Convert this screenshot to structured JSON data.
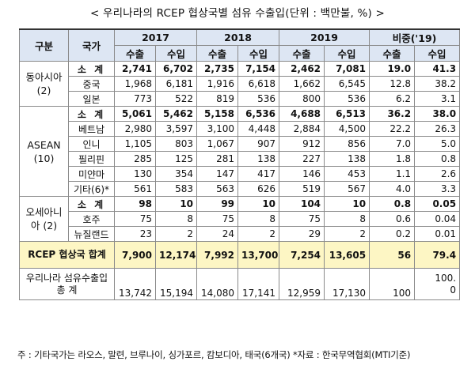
{
  "title": "< 우리나라의 RCEP 협상국별 섬유 수출입(단위 : 백만불, %) >",
  "header": {
    "category": "구분",
    "country": "국가",
    "years": [
      "2017",
      "2018",
      "2019",
      "비중('19)"
    ],
    "export": "수출",
    "import": "수입"
  },
  "groups": {
    "east_asia": {
      "region": "동아시아\n(2)",
      "subtotal": {
        "label": "소 계",
        "values": [
          "2,741",
          "6,702",
          "2,735",
          "7,154",
          "2,462",
          "7,081",
          "19.0",
          "41.3"
        ]
      },
      "rows": [
        {
          "country": "중국",
          "values": [
            "1,968",
            "6,181",
            "1,916",
            "6,618",
            "1,662",
            "6,545",
            "12.8",
            "38.2"
          ]
        },
        {
          "country": "일본",
          "values": [
            "773",
            "522",
            "819",
            "536",
            "800",
            "536",
            "6.2",
            "3.1"
          ]
        }
      ]
    },
    "asean": {
      "region": "ASEAN\n(10)",
      "subtotal": {
        "label": "소 계",
        "values": [
          "5,061",
          "5,462",
          "5,158",
          "6,536",
          "4,688",
          "6,513",
          "36.2",
          "38.0"
        ]
      },
      "rows": [
        {
          "country": "베트남",
          "values": [
            "2,980",
            "3,597",
            "3,100",
            "4,448",
            "2,884",
            "4,500",
            "22.2",
            "26.3"
          ]
        },
        {
          "country": "인니",
          "values": [
            "1,105",
            "803",
            "1,067",
            "907",
            "912",
            "856",
            "7.0",
            "5.0"
          ]
        },
        {
          "country": "필리핀",
          "values": [
            "285",
            "125",
            "281",
            "138",
            "227",
            "138",
            "1.8",
            "0.8"
          ]
        },
        {
          "country": "미얀마",
          "values": [
            "130",
            "354",
            "147",
            "417",
            "146",
            "453",
            "1.1",
            "2.6"
          ]
        },
        {
          "country": "기타(6)*",
          "values": [
            "561",
            "583",
            "563",
            "626",
            "519",
            "567",
            "4.0",
            "3.3"
          ]
        }
      ]
    },
    "oceania": {
      "region": "오세아니\n아\n(2)",
      "subtotal": {
        "label": "소 계",
        "values": [
          "98",
          "10",
          "99",
          "10",
          "104",
          "10",
          "0.8",
          "0.05"
        ]
      },
      "rows": [
        {
          "country": "호주",
          "values": [
            "75",
            "8",
            "75",
            "8",
            "75",
            "8",
            "0.6",
            "0.04"
          ]
        },
        {
          "country": "뉴질랜드",
          "values": [
            "23",
            "2",
            "24",
            "2",
            "29",
            "2",
            "0.2",
            "0.01"
          ]
        }
      ]
    }
  },
  "rcep_total": {
    "label": "RCEP 협상국\n합계",
    "values": [
      "7,900",
      "12,174",
      "7,992",
      "13,700",
      "7,254",
      "13,605",
      "56",
      "79.4"
    ]
  },
  "korea_total": {
    "label": "우리나라 섬유수출입\n총 계",
    "values": [
      "13,742",
      "15,194",
      "14,080",
      "17,141",
      "12,959",
      "17,130",
      "100",
      "100.\n0"
    ]
  },
  "footnote": "주 : 기타국가는 라오스, 말련, 브루나이, 싱가포르, 캄보디아, 태국(6개국) *자료 : 한국무역협회(MTI기준)"
}
